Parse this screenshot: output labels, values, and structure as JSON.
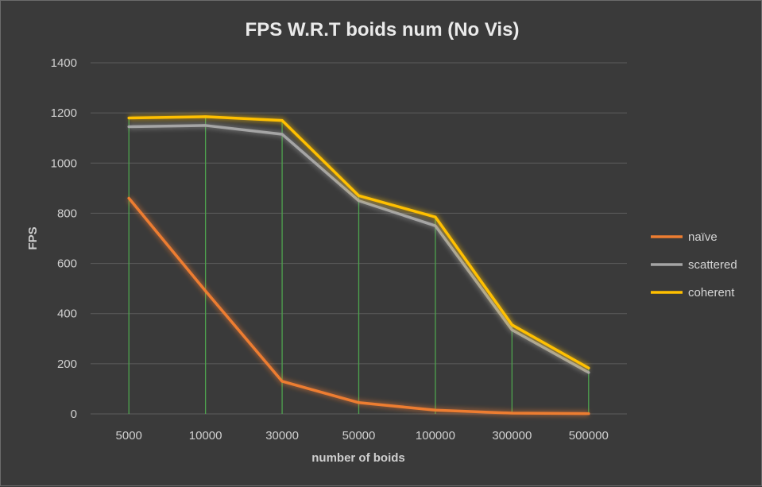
{
  "chart_data": {
    "type": "line",
    "title": "FPS W.R.T boids num (No Vis)",
    "xlabel": "number of boids",
    "ylabel": "FPS",
    "categories": [
      "5000",
      "10000",
      "30000",
      "50000",
      "100000",
      "300000",
      "500000"
    ],
    "ylim": [
      0,
      1400
    ],
    "yticks": [
      0,
      200,
      400,
      600,
      800,
      1000,
      1200,
      1400
    ],
    "grid": true,
    "legend_position": "right",
    "drop_lines": true,
    "series": [
      {
        "name": "naïve",
        "color": "#ed7d31",
        "values": [
          860,
          490,
          130,
          45,
          15,
          3,
          1
        ]
      },
      {
        "name": "scattered",
        "color": "#a5a5a5",
        "values": [
          1145,
          1150,
          1115,
          850,
          750,
          335,
          165
        ]
      },
      {
        "name": "coherent",
        "color": "#ffc000",
        "values": [
          1180,
          1185,
          1170,
          870,
          785,
          355,
          183
        ]
      }
    ]
  }
}
